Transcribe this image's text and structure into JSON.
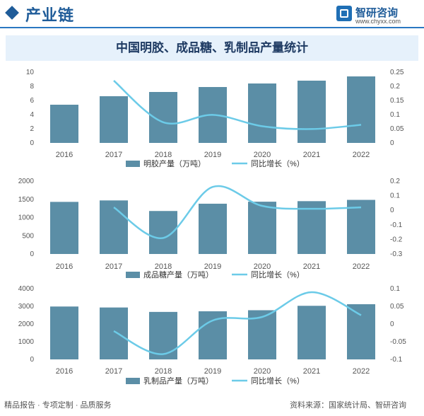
{
  "header": {
    "title": "产业链"
  },
  "logo": {
    "name": "智研咨询",
    "url": "www.chyxx.com"
  },
  "banner": {
    "title": "中国明胶、成品糖、乳制品产量统计"
  },
  "footer": {
    "left": "精品报告 · 专项定制 · 品质服务",
    "right": "资料来源：国家统计局、智研咨询"
  },
  "colors": {
    "bar": "#5b8ea6",
    "line": "#6ccbe8"
  },
  "chart_data": [
    {
      "type": "bar",
      "categories": [
        "2016",
        "2017",
        "2018",
        "2019",
        "2020",
        "2021",
        "2022"
      ],
      "series": [
        {
          "name": "明胶产量（万吨）",
          "type": "bar",
          "axis": "left",
          "values": [
            5.4,
            6.6,
            7.2,
            7.9,
            8.4,
            8.8,
            9.4
          ]
        },
        {
          "name": "同比增长（%）",
          "type": "line",
          "axis": "right",
          "values": [
            null,
            0.22,
            0.073,
            0.099,
            0.059,
            0.049,
            0.064
          ]
        }
      ],
      "ylim_left": [
        0,
        10
      ],
      "yticks_left": [
        0,
        2,
        4,
        6,
        8,
        10
      ],
      "ylim_right": [
        0,
        0.25
      ],
      "yticks_right": [
        "0",
        "0.05",
        "0.1",
        "0.15",
        "0.2",
        "0.25"
      ],
      "legend": "bottom"
    },
    {
      "type": "bar",
      "categories": [
        "2016",
        "2017",
        "2018",
        "2019",
        "2020",
        "2021",
        "2022"
      ],
      "series": [
        {
          "name": "成品糖产量（万吨）",
          "type": "bar",
          "axis": "left",
          "values": [
            1430,
            1470,
            1180,
            1380,
            1435,
            1450,
            1485
          ]
        },
        {
          "name": "同比增长（%）",
          "type": "line",
          "axis": "right",
          "values": [
            null,
            0.02,
            -0.19,
            0.16,
            0.03,
            0.01,
            0.02
          ]
        }
      ],
      "ylim_left": [
        0,
        2000
      ],
      "yticks_left": [
        0,
        500,
        1000,
        1500,
        2000
      ],
      "ylim_right": [
        -0.3,
        0.2
      ],
      "yticks_right": [
        "-0.3",
        "-0.2",
        "-0.1",
        "0",
        "0.1",
        "0.2"
      ],
      "legend": "bottom"
    },
    {
      "type": "bar",
      "categories": [
        "2016",
        "2017",
        "2018",
        "2019",
        "2020",
        "2021",
        "2022"
      ],
      "series": [
        {
          "name": "乳制品产量（万吨）",
          "type": "bar",
          "axis": "left",
          "values": [
            2990,
            2935,
            2685,
            2720,
            2780,
            3030,
            3120
          ]
        },
        {
          "name": "同比增长（%）",
          "type": "line",
          "axis": "right",
          "values": [
            null,
            -0.02,
            -0.085,
            0.01,
            0.02,
            0.09,
            0.025
          ]
        }
      ],
      "ylim_left": [
        0,
        4000
      ],
      "yticks_left": [
        0,
        1000,
        2000,
        3000,
        4000
      ],
      "ylim_right": [
        -0.1,
        0.1
      ],
      "yticks_right": [
        "-0.1",
        "-0.05",
        "0",
        "0.05",
        "0.1"
      ],
      "legend": "bottom"
    }
  ]
}
